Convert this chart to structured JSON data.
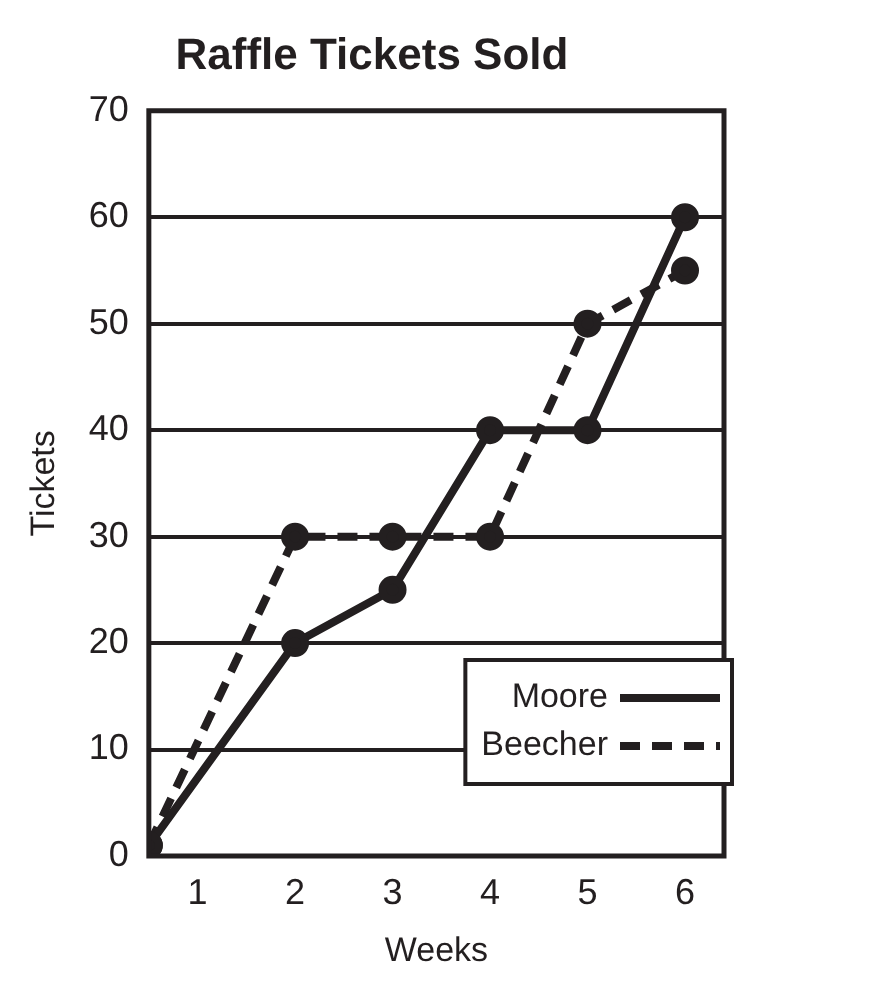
{
  "chart_data": {
    "type": "line",
    "title": "Raffle Tickets Sold",
    "xlabel": "Weeks",
    "ylabel": "Tickets",
    "x": [
      0.5,
      2,
      3,
      4,
      5,
      6
    ],
    "series": [
      {
        "name": "Moore",
        "color": "#231f20",
        "values": [
          1,
          20,
          25,
          40,
          40,
          60
        ],
        "line_style": "solid"
      },
      {
        "name": "Beecher",
        "color": "#231f20",
        "values": [
          1,
          30,
          30,
          30,
          50,
          55
        ],
        "line_style": "dashed"
      }
    ],
    "xlim": [
      0.5,
      6.4
    ],
    "xticks": [
      1,
      2,
      3,
      4,
      5,
      6
    ],
    "ylim": [
      0,
      70
    ],
    "yticks": [
      0,
      10,
      20,
      30,
      40,
      50,
      60,
      70
    ],
    "grid": "y",
    "legend": "bottom right",
    "marker": "circle"
  }
}
